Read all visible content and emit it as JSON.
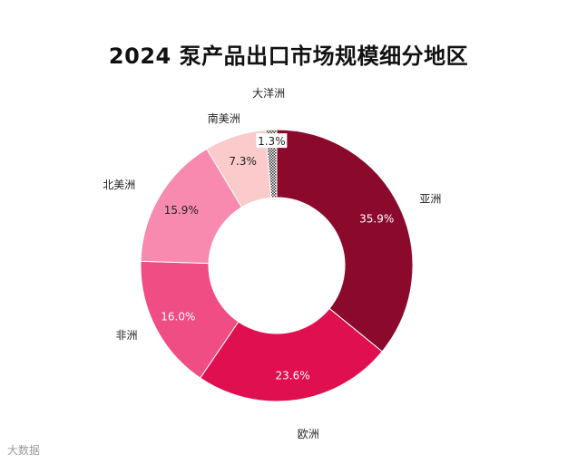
{
  "page": {
    "title": "2024 泵产品出口市场规模细分地区"
  },
  "footer": {
    "watermark": "大数据"
  },
  "chart_data": {
    "type": "pie",
    "donut": true,
    "title": "2024 泵产品出口市场规模细分地区",
    "unit": "%",
    "slices": [
      {
        "label": "亚洲",
        "value": 35.9,
        "value_label": "35.9%",
        "color": "#8b0a2c"
      },
      {
        "label": "欧洲",
        "value": 23.6,
        "value_label": "23.6%",
        "color": "#e01050"
      },
      {
        "label": "非洲",
        "value": 16.0,
        "value_label": "16.0%",
        "color": "#ef4d84"
      },
      {
        "label": "北美洲",
        "value": 15.9,
        "value_label": "15.9%",
        "color": "#f78aae"
      },
      {
        "label": "南美洲",
        "value": 7.3,
        "value_label": "7.3%",
        "color": "#fbcaca"
      },
      {
        "label": "大洋洲",
        "value": 1.3,
        "value_label": "1.3%",
        "color": "#c8c8c8"
      }
    ]
  }
}
